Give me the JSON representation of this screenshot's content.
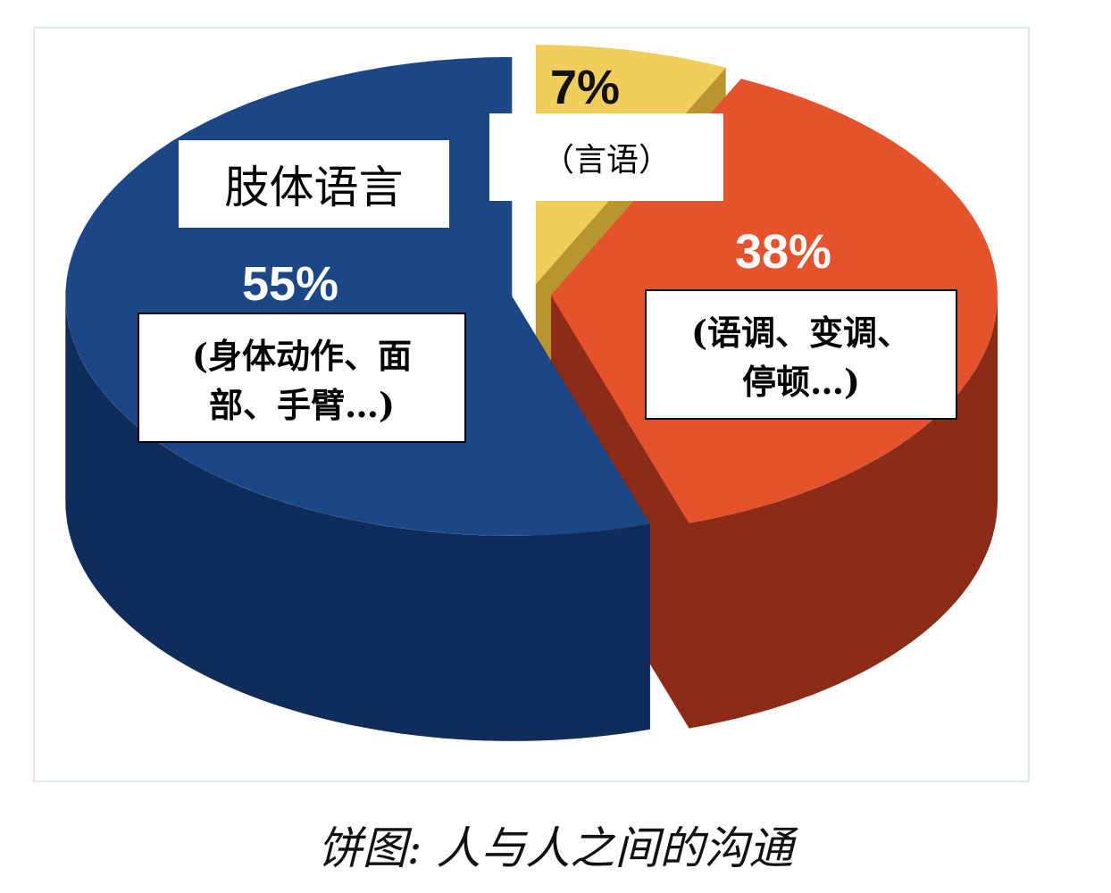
{
  "chart_data": {
    "type": "pie",
    "title": "饼图: 人与人之间的沟通",
    "categories": [
      "（言语）",
      null,
      "肢体语言"
    ],
    "descriptions": [
      null,
      "(语调、变调、停顿…)",
      "(身体动作、面部、手臂…)"
    ],
    "values": [
      7,
      38,
      55
    ],
    "value_labels": [
      "7%",
      "38%",
      "55%"
    ],
    "colors": [
      "#f1cd5a",
      "#e6522c",
      "#1c4787"
    ],
    "side_colors": [
      "#b9952f",
      "#8c2b16",
      "#102c5a"
    ]
  }
}
